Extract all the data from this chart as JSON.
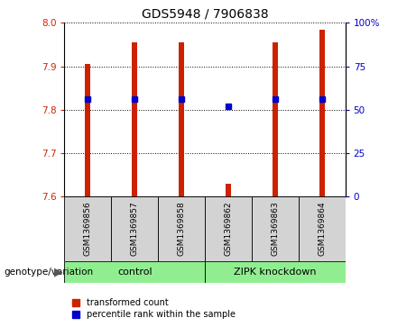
{
  "title": "GDS5948 / 7906838",
  "samples": [
    "GSM1369856",
    "GSM1369857",
    "GSM1369858",
    "GSM1369862",
    "GSM1369863",
    "GSM1369864"
  ],
  "bar_color": "#CC2200",
  "dot_color": "#0000CC",
  "red_values": [
    7.905,
    7.955,
    7.955,
    7.628,
    7.955,
    7.985
  ],
  "blue_values": [
    7.825,
    7.824,
    7.824,
    7.808,
    7.824,
    7.824
  ],
  "ylim_left": [
    7.6,
    8.0
  ],
  "yticks_left": [
    7.6,
    7.7,
    7.8,
    7.9,
    8.0
  ],
  "ylim_right": [
    0,
    100
  ],
  "yticks_right": [
    0,
    25,
    50,
    75,
    100
  ],
  "yticklabels_right": [
    "0",
    "25",
    "50",
    "75",
    "100%"
  ],
  "left_color": "#CC2200",
  "right_color": "#0000CC",
  "bar_bottom": 7.6,
  "bar_width": 0.12,
  "legend_labels": [
    "transformed count",
    "percentile rank within the sample"
  ],
  "group_label_left": "genotype/variation",
  "ctrl_label": "control",
  "zipk_label": "ZIPK knockdown",
  "gray_color": "#D3D3D3",
  "green_color": "#90EE90",
  "title_fontsize": 10,
  "tick_fontsize": 7.5,
  "sample_fontsize": 6.5,
  "group_fontsize": 8,
  "legend_fontsize": 7
}
